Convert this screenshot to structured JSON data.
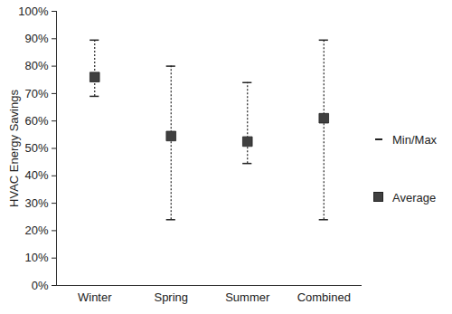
{
  "chart_data": {
    "type": "scatter",
    "y_label": "HVAC Energy Savings",
    "categories": [
      "Winter",
      "Spring",
      "Summer",
      "Combined"
    ],
    "series": [
      {
        "name": "Average",
        "color": "#404040",
        "marker": "square",
        "values": [
          76,
          54.5,
          52.5,
          61
        ]
      }
    ],
    "error_bars": {
      "name": "Min/Max",
      "color": "#222222",
      "line_style": "dotted",
      "low": [
        69,
        24,
        44.5,
        24
      ],
      "high": [
        89.5,
        80,
        74,
        89.5
      ]
    },
    "ylim": [
      0,
      100
    ],
    "yticks": [
      {
        "value": 0,
        "label": "0%"
      },
      {
        "value": 10,
        "label": "10%"
      },
      {
        "value": 20,
        "label": "20%"
      },
      {
        "value": 30,
        "label": "30%"
      },
      {
        "value": 40,
        "label": "40%"
      },
      {
        "value": 50,
        "label": "50%"
      },
      {
        "value": 60,
        "label": "60%"
      },
      {
        "value": 70,
        "label": "70%"
      },
      {
        "value": 80,
        "label": "80%"
      },
      {
        "value": 90,
        "label": "90%"
      },
      {
        "value": 100,
        "label": "100%"
      }
    ],
    "legend": "right",
    "grid": false
  }
}
